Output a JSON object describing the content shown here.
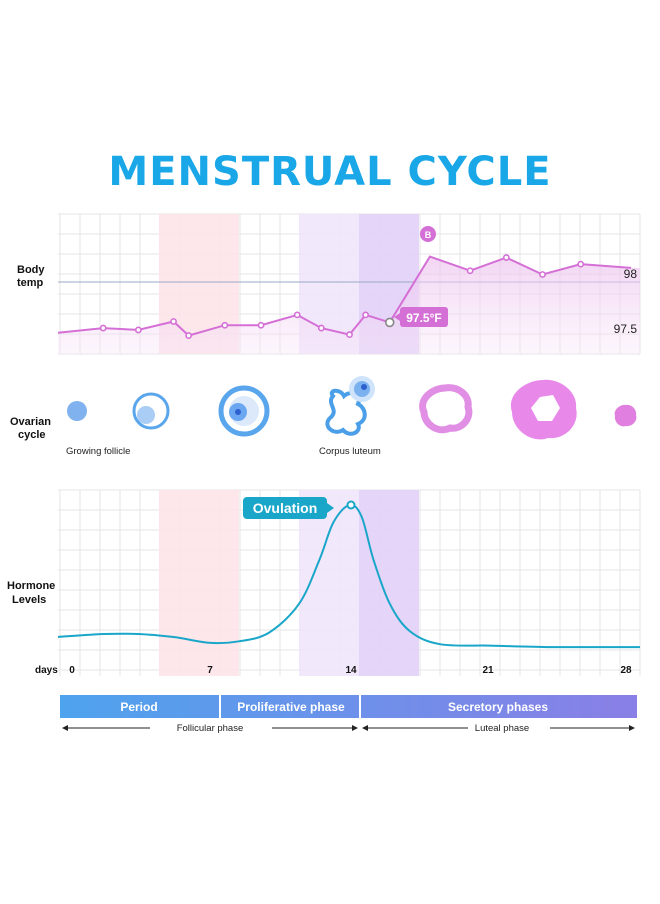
{
  "title": "MENSTRUAL CYCLE",
  "colors": {
    "title": "#1aa7e8",
    "temp_line": "#d46fd6",
    "temp_fill": "#f2d3f3",
    "hormone_line": "#19a6c9",
    "period_band": "#fde3e8",
    "ovulation_band": "#f1e6fb",
    "luteal_band": "#e4d3f7",
    "grid": "#e4e4e4",
    "phase_bar_start": "#4ea3ee",
    "phase_bar_end": "#7f7ee8"
  },
  "temp_section": {
    "label_line1": "Body",
    "label_line2": "temp",
    "tick_98": "98",
    "tick_97_5": "97.5",
    "callout": "97.5°F",
    "peak_marker": "B"
  },
  "ovarian_section": {
    "label_line1": "Ovarian",
    "label_line2": "cycle",
    "icons": [
      "growing-follicle-small-icon",
      "growing-follicle-medium-icon",
      "mature-follicle-icon",
      "ovulating-follicle-icon",
      "corpus-luteum-ring-icon",
      "corpus-luteum-large-icon",
      "corpus-albicans-icon"
    ],
    "captions": [
      "Growing follicle",
      "Corpus luteum"
    ]
  },
  "hormone_section": {
    "label_line1": "Hormone",
    "label_line2": "Levels",
    "callout": "Ovulation"
  },
  "days_axis": {
    "label": "days",
    "ticks": [
      "0",
      "7",
      "14",
      "21",
      "28"
    ]
  },
  "phase_bar": {
    "segments": [
      "Period",
      "Proliferative phase",
      "Secretory phases"
    ]
  },
  "phase_arrows": {
    "left": "Follicular phase",
    "right": "Luteal phase"
  },
  "chart_data": [
    {
      "type": "line",
      "ylabel": "Body temp",
      "x": [
        0,
        1.75,
        3.5,
        5.25,
        6.0,
        7.8,
        9.6,
        11.4,
        12.6,
        14.0,
        14.8,
        16.0,
        18.0,
        20.0,
        21.8,
        23.6,
        25.5,
        28.0
      ],
      "y": [
        97.46,
        97.51,
        97.49,
        97.58,
        97.43,
        97.54,
        97.54,
        97.65,
        97.51,
        97.44,
        97.65,
        97.57,
        98.27,
        98.12,
        98.26,
        98.08,
        98.19,
        98.15
      ],
      "y_ticks": [
        98,
        97.5
      ],
      "reference_line": 98,
      "annotations": [
        {
          "x": 16.0,
          "y": 97.57,
          "text": "97.5°F"
        },
        {
          "x": 18.0,
          "y": 98.27,
          "text": "B"
        }
      ]
    },
    {
      "type": "line",
      "ylabel": "Hormone Levels",
      "xlabel": "days",
      "x_ticks": [
        0,
        7,
        14,
        21,
        28
      ],
      "x": [
        0,
        1.75,
        3.5,
        5.25,
        7.0,
        8.5,
        10.0,
        11.5,
        12.5,
        13.2,
        14.0,
        14.6,
        15.2,
        16.0,
        17.0,
        18.5,
        21.0,
        24.0,
        26.0,
        28.0
      ],
      "y": [
        0.09,
        0.11,
        0.11,
        0.09,
        0.05,
        0.06,
        0.12,
        0.32,
        0.62,
        0.88,
        1.0,
        0.92,
        0.62,
        0.32,
        0.13,
        0.04,
        0.03,
        0.02,
        0.02,
        0.02
      ],
      "ylim": [
        0,
        1
      ],
      "annotations": [
        {
          "x": 14.0,
          "y": 1.0,
          "text": "Ovulation"
        }
      ]
    }
  ]
}
